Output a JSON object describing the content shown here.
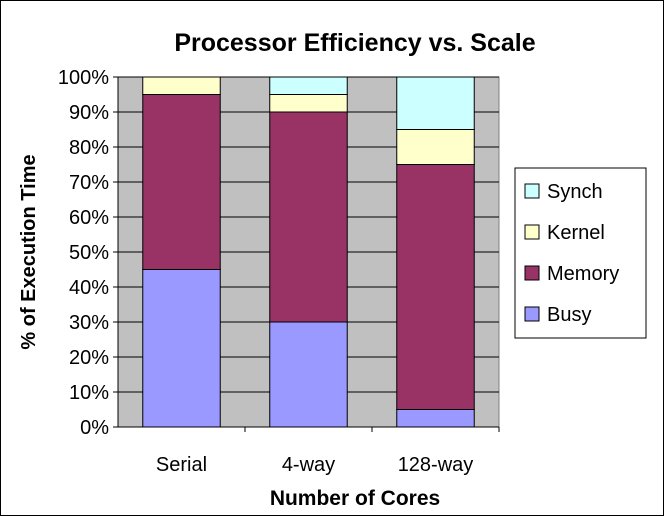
{
  "chart_data": {
    "type": "bar",
    "stacked": true,
    "title": "Processor Efficiency vs. Scale",
    "xlabel": "Number of Cores",
    "ylabel": "% of Execution Time",
    "categories": [
      "Serial",
      "4-way",
      "128-way"
    ],
    "ylim": [
      0,
      100
    ],
    "yticks": [
      "0%",
      "10%",
      "20%",
      "30%",
      "40%",
      "50%",
      "60%",
      "70%",
      "80%",
      "90%",
      "100%"
    ],
    "grid": true,
    "legend_position": "right",
    "series": [
      {
        "name": "Busy",
        "color": "#9999ff",
        "values": [
          45,
          30,
          5
        ]
      },
      {
        "name": "Memory",
        "color": "#993366",
        "values": [
          50,
          60,
          70
        ]
      },
      {
        "name": "Kernel",
        "color": "#ffffcc",
        "values": [
          5,
          5,
          10
        ]
      },
      {
        "name": "Synch",
        "color": "#ccffff",
        "values": [
          0,
          5,
          15
        ]
      }
    ],
    "plot_background": "#c0c0c0",
    "legend_order": [
      "Synch",
      "Kernel",
      "Memory",
      "Busy"
    ]
  }
}
